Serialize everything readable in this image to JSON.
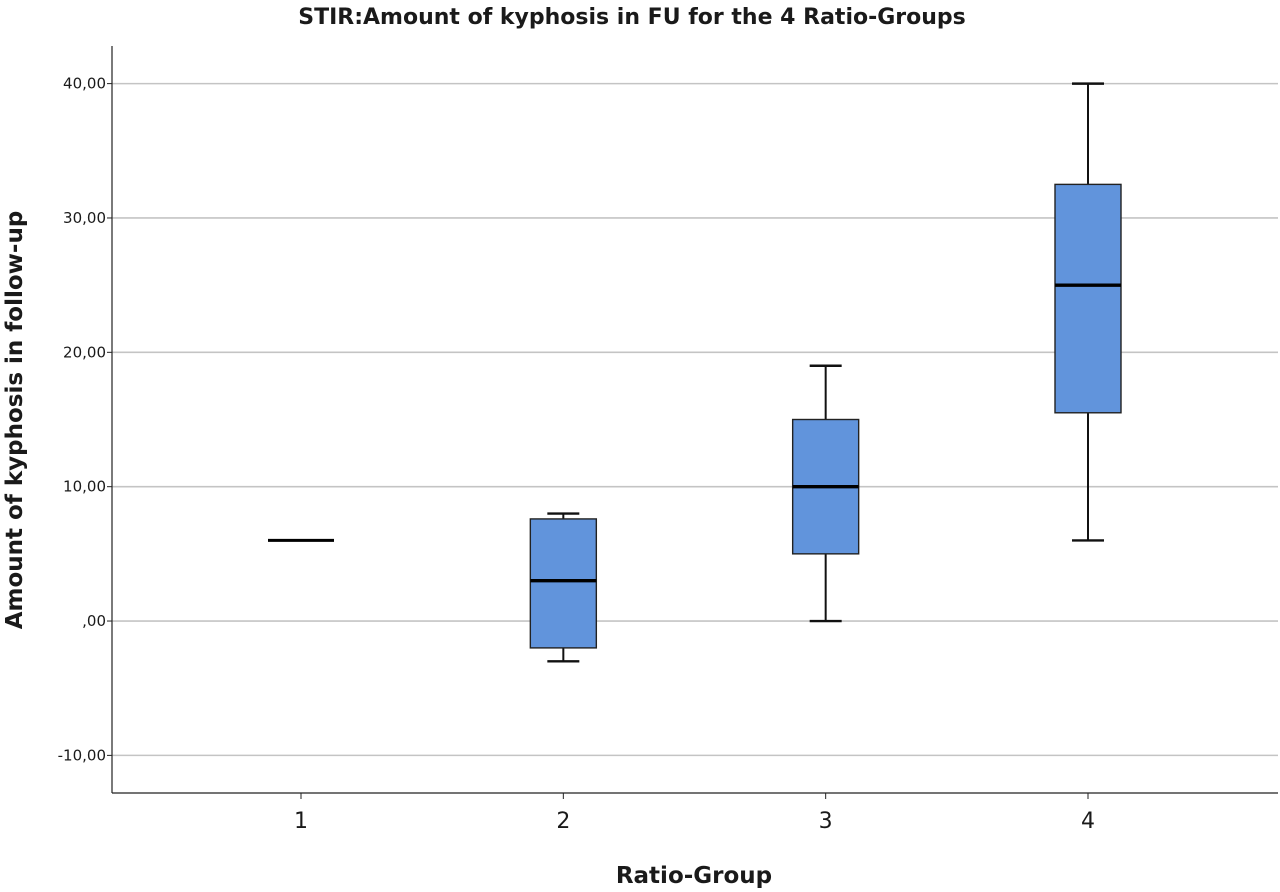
{
  "chart_data": {
    "type": "boxplot",
    "title": "STIR:Amount of kyphosis in FU for the 4 Ratio-Groups",
    "xlabel": "Ratio-Group",
    "ylabel": "Amount of kyphosis in follow-up",
    "categories": [
      "1",
      "2",
      "3",
      "4"
    ],
    "ylim": [
      -12.8,
      42.8
    ],
    "yticks": [
      -10,
      0,
      10,
      20,
      30,
      40
    ],
    "ytick_labels": [
      "-10,00",
      ",00",
      "10,00",
      "20,00",
      "30,00",
      "40,00"
    ],
    "grid": true,
    "box_color": "#6194dc",
    "series": [
      {
        "category": "1",
        "min": 6,
        "q1": 6,
        "median": 6,
        "q3": 6,
        "max": 6
      },
      {
        "category": "2",
        "min": -3,
        "q1": -2,
        "median": 3,
        "q3": 7.6,
        "max": 8
      },
      {
        "category": "3",
        "min": 0,
        "q1": 5,
        "median": 10,
        "q3": 15,
        "max": 19
      },
      {
        "category": "4",
        "min": 6,
        "q1": 15.5,
        "median": 25,
        "q3": 32.5,
        "max": 40
      }
    ]
  }
}
